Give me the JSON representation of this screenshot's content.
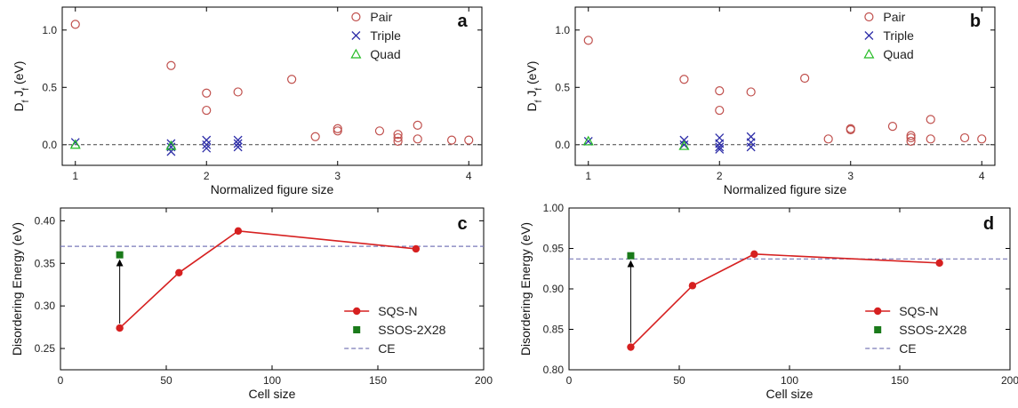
{
  "chart_data": [
    {
      "panel": "a",
      "type": "scatter",
      "xlabel": "Normalized figure size",
      "ylabel": "D_f J_f (eV)",
      "xlim": [
        0.9,
        4.1
      ],
      "ylim": [
        -0.18,
        1.2
      ],
      "xticks": [
        1,
        2,
        3,
        4
      ],
      "yticks": [
        0.0,
        0.5,
        1.0
      ],
      "xtick_labels": [
        "1",
        "2",
        "3",
        "4"
      ],
      "ytick_labels": [
        "0.0",
        "0.5",
        "1.0"
      ],
      "reference_line": 0,
      "legend": "top-right",
      "series": [
        {
          "name": "Pair",
          "marker": "circle",
          "color": "#c0504d",
          "points": [
            [
              1.0,
              1.05
            ],
            [
              1.73,
              0.69
            ],
            [
              2.0,
              0.45
            ],
            [
              2.0,
              0.3
            ],
            [
              2.24,
              0.46
            ],
            [
              2.65,
              0.57
            ],
            [
              2.83,
              0.07
            ],
            [
              3.0,
              0.14
            ],
            [
              3.0,
              0.12
            ],
            [
              3.32,
              0.12
            ],
            [
              3.46,
              0.09
            ],
            [
              3.46,
              0.06
            ],
            [
              3.46,
              0.03
            ],
            [
              3.61,
              0.17
            ],
            [
              3.61,
              0.05
            ],
            [
              3.87,
              0.04
            ],
            [
              4.0,
              0.04
            ]
          ]
        },
        {
          "name": "Triple",
          "marker": "x",
          "color": "#2e2ea8",
          "points": [
            [
              1.0,
              0.02
            ],
            [
              1.73,
              0.01
            ],
            [
              1.73,
              -0.02
            ],
            [
              1.73,
              -0.06
            ],
            [
              2.0,
              0.04
            ],
            [
              2.0,
              0.0
            ],
            [
              2.0,
              -0.03
            ],
            [
              2.24,
              0.04
            ],
            [
              2.24,
              0.01
            ],
            [
              2.24,
              -0.02
            ]
          ]
        },
        {
          "name": "Quad",
          "marker": "triangle",
          "color": "#22bb22",
          "points": [
            [
              1.0,
              0.0
            ],
            [
              1.73,
              -0.01
            ]
          ]
        }
      ]
    },
    {
      "panel": "b",
      "type": "scatter",
      "xlabel": "Normalized figure size",
      "ylabel": "D_f J_f (eV)",
      "xlim": [
        0.9,
        4.1
      ],
      "ylim": [
        -0.18,
        1.2
      ],
      "xticks": [
        1,
        2,
        3,
        4
      ],
      "yticks": [
        0.0,
        0.5,
        1.0
      ],
      "xtick_labels": [
        "1",
        "2",
        "3",
        "4"
      ],
      "ytick_labels": [
        "0.0",
        "0.5",
        "1.0"
      ],
      "reference_line": 0,
      "legend": "top-right",
      "series": [
        {
          "name": "Pair",
          "marker": "circle",
          "color": "#c0504d",
          "points": [
            [
              1.0,
              0.91
            ],
            [
              1.73,
              0.57
            ],
            [
              2.0,
              0.47
            ],
            [
              2.0,
              0.3
            ],
            [
              2.24,
              0.46
            ],
            [
              2.65,
              0.58
            ],
            [
              2.83,
              0.05
            ],
            [
              3.0,
              0.14
            ],
            [
              3.0,
              0.13
            ],
            [
              3.32,
              0.16
            ],
            [
              3.46,
              0.08
            ],
            [
              3.46,
              0.06
            ],
            [
              3.46,
              0.03
            ],
            [
              3.61,
              0.22
            ],
            [
              3.61,
              0.05
            ],
            [
              3.87,
              0.06
            ],
            [
              4.0,
              0.05
            ]
          ]
        },
        {
          "name": "Triple",
          "marker": "x",
          "color": "#2e2ea8",
          "points": [
            [
              1.0,
              0.03
            ],
            [
              1.73,
              0.04
            ],
            [
              1.73,
              0.0
            ],
            [
              2.0,
              0.06
            ],
            [
              2.0,
              0.01
            ],
            [
              2.0,
              -0.02
            ],
            [
              2.0,
              -0.04
            ],
            [
              2.24,
              0.07
            ],
            [
              2.24,
              0.02
            ],
            [
              2.24,
              -0.02
            ]
          ]
        },
        {
          "name": "Quad",
          "marker": "triangle",
          "color": "#22bb22",
          "points": [
            [
              1.0,
              0.03
            ],
            [
              1.73,
              -0.01
            ]
          ]
        }
      ]
    },
    {
      "panel": "c",
      "type": "line",
      "xlabel": "Cell size",
      "ylabel": "Disordering Energy (eV)",
      "xlim": [
        0,
        200
      ],
      "ylim": [
        0.225,
        0.415
      ],
      "xticks": [
        0,
        50,
        100,
        150,
        200
      ],
      "yticks": [
        0.25,
        0.3,
        0.35,
        0.4
      ],
      "xtick_labels": [
        "0",
        "50",
        "100",
        "150",
        "200"
      ],
      "ytick_labels": [
        "0.25",
        "0.30",
        "0.35",
        "0.40"
      ],
      "legend": "bottom-right",
      "series": [
        {
          "name": "SQS-N",
          "style": "line-marker",
          "color": "#d62020",
          "x": [
            28,
            56,
            84,
            168
          ],
          "y": [
            0.274,
            0.339,
            0.388,
            0.367
          ]
        },
        {
          "name": "SSOS-2X28",
          "style": "square",
          "color": "#1a7a1a",
          "x": [
            28
          ],
          "y": [
            0.36
          ]
        },
        {
          "name": "CE",
          "style": "dashed-hline",
          "color": "#7a7ab8",
          "y": 0.37
        }
      ],
      "annotation": {
        "type": "arrow",
        "x": 28,
        "from": 0.274,
        "to": 0.36
      }
    },
    {
      "panel": "d",
      "type": "line",
      "xlabel": "Cell size",
      "ylabel": "Disordering Energy (eV)",
      "xlim": [
        0,
        200
      ],
      "ylim": [
        0.8,
        1.0
      ],
      "xticks": [
        0,
        50,
        100,
        150,
        200
      ],
      "yticks": [
        0.8,
        0.85,
        0.9,
        0.95,
        1.0
      ],
      "xtick_labels": [
        "0",
        "50",
        "100",
        "150",
        "200"
      ],
      "ytick_labels": [
        "0.80",
        "0.85",
        "0.90",
        "0.95",
        "1.00"
      ],
      "legend": "bottom-right",
      "series": [
        {
          "name": "SQS-N",
          "style": "line-marker",
          "color": "#d62020",
          "x": [
            28,
            56,
            84,
            168
          ],
          "y": [
            0.828,
            0.904,
            0.943,
            0.932
          ]
        },
        {
          "name": "SSOS-2X28",
          "style": "square",
          "color": "#1a7a1a",
          "x": [
            28
          ],
          "y": [
            0.941
          ]
        },
        {
          "name": "CE",
          "style": "dashed-hline",
          "color": "#7a7ab8",
          "y": 0.937
        }
      ],
      "annotation": {
        "type": "arrow",
        "x": 28,
        "from": 0.828,
        "to": 0.941
      }
    }
  ]
}
